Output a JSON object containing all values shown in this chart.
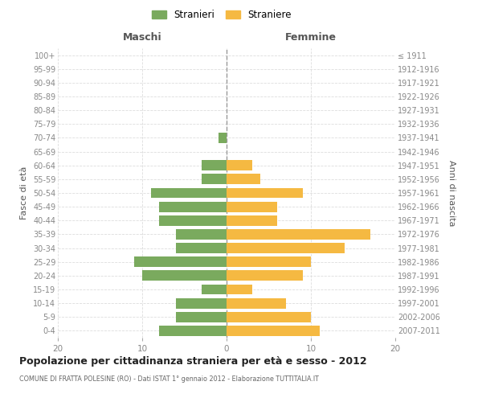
{
  "age_groups": [
    "100+",
    "95-99",
    "90-94",
    "85-89",
    "80-84",
    "75-79",
    "70-74",
    "65-69",
    "60-64",
    "55-59",
    "50-54",
    "45-49",
    "40-44",
    "35-39",
    "30-34",
    "25-29",
    "20-24",
    "15-19",
    "10-14",
    "5-9",
    "0-4"
  ],
  "birth_years": [
    "≤ 1911",
    "1912-1916",
    "1917-1921",
    "1922-1926",
    "1927-1931",
    "1932-1936",
    "1937-1941",
    "1942-1946",
    "1947-1951",
    "1952-1956",
    "1957-1961",
    "1962-1966",
    "1967-1971",
    "1972-1976",
    "1977-1981",
    "1982-1986",
    "1987-1991",
    "1992-1996",
    "1997-2001",
    "2002-2006",
    "2007-2011"
  ],
  "males": [
    0,
    0,
    0,
    0,
    0,
    0,
    1,
    0,
    3,
    3,
    9,
    8,
    8,
    6,
    6,
    11,
    10,
    3,
    6,
    6,
    8
  ],
  "females": [
    0,
    0,
    0,
    0,
    0,
    0,
    0,
    0,
    3,
    4,
    9,
    6,
    6,
    17,
    14,
    10,
    9,
    3,
    7,
    10,
    11
  ],
  "male_color": "#7aaa5e",
  "female_color": "#f5b942",
  "male_label": "Stranieri",
  "female_label": "Straniere",
  "title": "Popolazione per cittadinanza straniera per età e sesso - 2012",
  "subtitle": "COMUNE DI FRATTA POLESINE (RO) - Dati ISTAT 1° gennaio 2012 - Elaborazione TUTTITALIA.IT",
  "ylabel_left": "Fasce di età",
  "ylabel_right": "Anni di nascita",
  "xlabel_left": "Maschi",
  "xlabel_right": "Femmine",
  "xlim": 20,
  "bg_color": "#ffffff",
  "grid_color": "#dddddd"
}
